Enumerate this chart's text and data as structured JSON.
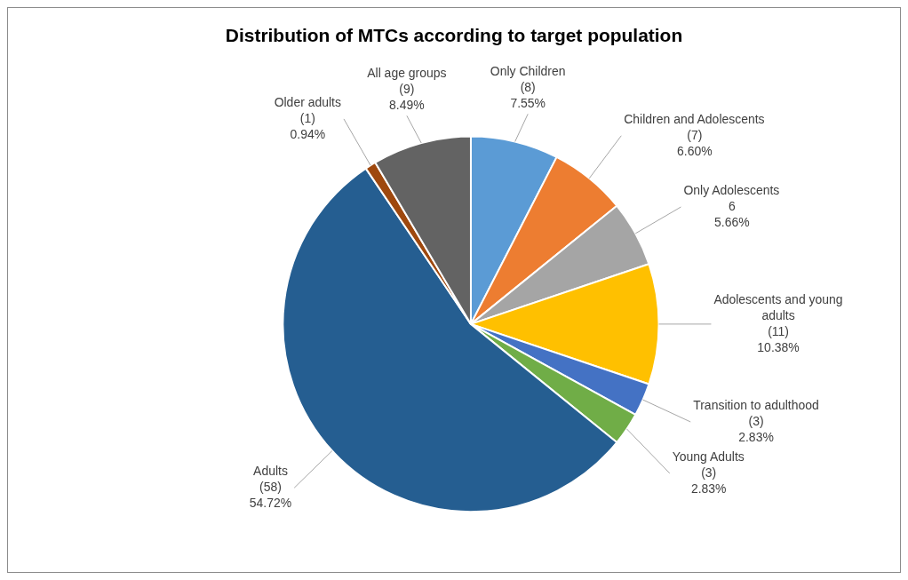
{
  "chart_data": {
    "type": "pie",
    "title": "Distribution of MTCs according to target population",
    "categories": [
      "Only Children",
      "Children and Adolescents",
      "Only Adolescents",
      "Adolescents and young adults",
      "Transition to adulthood",
      "Young Adults",
      "Adults",
      "Older adults",
      "All age groups"
    ],
    "values": [
      8,
      7,
      6,
      11,
      3,
      3,
      58,
      1,
      9
    ],
    "colors": [
      "#5b9bd5",
      "#ed7d31",
      "#a5a5a5",
      "#ffc000",
      "#4472c4",
      "#70ad47",
      "#255e91",
      "#9e480e",
      "#636363"
    ],
    "value_labels": [
      "(8)\n7.55%",
      "(7)\n6.60%",
      "6\n5.66%",
      "(11)\n10.38%",
      "(3)\n2.83%",
      "(3)\n2.83%",
      "(58)\n54.72%",
      "(1)\n0.94%",
      "(9)\n8.49%"
    ],
    "legend": false
  }
}
